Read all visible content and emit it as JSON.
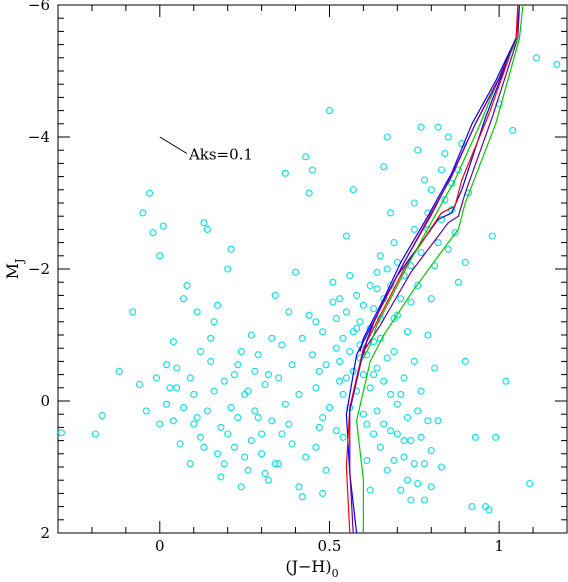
{
  "chart_data": {
    "type": "scatter",
    "xlabel_main": "(J−H)",
    "xlabel_sub": "0",
    "ylabel_main": "M",
    "ylabel_sub": "J",
    "xlim": [
      -0.3,
      1.2
    ],
    "ylim": [
      2,
      -6
    ],
    "y_axis_inverted": true,
    "x_ticks": [
      0,
      0.5,
      1
    ],
    "x_tick_labels": [
      "0",
      "0.5",
      "1"
    ],
    "y_ticks": [
      -6,
      -4,
      -2,
      0,
      2
    ],
    "y_tick_labels": [
      "−6",
      "−4",
      "−2",
      "0",
      "2"
    ],
    "grid": false,
    "annotation": {
      "text": "Aks=0.1",
      "arrow_from": [
        0.0,
        -4.0
      ],
      "arrow_to": [
        0.08,
        -3.75
      ]
    },
    "points_color": "#00e5e5",
    "points": [
      [
        -0.29,
        0.48
      ],
      [
        -0.19,
        0.5
      ],
      [
        -0.17,
        0.22
      ],
      [
        -0.12,
        -0.45
      ],
      [
        -0.08,
        -1.35
      ],
      [
        -0.06,
        -0.25
      ],
      [
        -0.04,
        0.15
      ],
      [
        -0.03,
        -3.15
      ],
      [
        -0.02,
        -2.55
      ],
      [
        -0.05,
        -2.85
      ],
      [
        0.0,
        -2.2
      ],
      [
        0.01,
        -2.65
      ],
      [
        0.02,
        0.05
      ],
      [
        0.03,
        -0.2
      ],
      [
        0.04,
        0.3
      ],
      [
        0.05,
        -0.5
      ],
      [
        -0.01,
        -0.35
      ],
      [
        0.06,
        0.65
      ],
      [
        0.07,
        -1.55
      ],
      [
        0.08,
        -1.75
      ],
      [
        0.09,
        0.95
      ],
      [
        0.1,
        -0.1
      ],
      [
        0.11,
        0.25
      ],
      [
        0.12,
        -0.75
      ],
      [
        0.13,
        -2.7
      ],
      [
        0.14,
        -2.6
      ],
      [
        0.15,
        -0.95
      ],
      [
        0.16,
        -1.2
      ],
      [
        0.17,
        -1.45
      ],
      [
        0.18,
        0.4
      ],
      [
        0.19,
        -0.3
      ],
      [
        0.2,
        -2.0
      ],
      [
        0.21,
        -2.3
      ],
      [
        0.22,
        0.7
      ],
      [
        0.23,
        -0.55
      ],
      [
        0.24,
        1.3
      ],
      [
        0.25,
        0.85
      ],
      [
        0.26,
        -0.15
      ],
      [
        0.27,
        -1.0
      ],
      [
        0.28,
        0.15
      ],
      [
        0.29,
        -0.7
      ],
      [
        0.3,
        0.5
      ],
      [
        0.31,
        1.1
      ],
      [
        0.32,
        -0.4
      ],
      [
        0.33,
        0.3
      ],
      [
        0.34,
        -1.6
      ],
      [
        0.35,
        0.95
      ],
      [
        0.36,
        -0.85
      ],
      [
        0.37,
        -3.45
      ],
      [
        0.38,
        -1.35
      ],
      [
        0.39,
        0.65
      ],
      [
        0.4,
        -1.95
      ],
      [
        0.41,
        -0.1
      ],
      [
        0.42,
        1.45
      ],
      [
        0.43,
        -3.7
      ],
      [
        0.44,
        -3.15
      ],
      [
        0.45,
        -3.5
      ],
      [
        0.46,
        -1.2
      ],
      [
        0.47,
        -0.45
      ],
      [
        0.48,
        0.25
      ],
      [
        0.49,
        1.05
      ],
      [
        0.5,
        -4.4
      ],
      [
        0.51,
        -1.5
      ],
      [
        0.52,
        -0.8
      ],
      [
        0.53,
        -0.3
      ],
      [
        0.54,
        0.55
      ],
      [
        0.55,
        -2.5
      ],
      [
        0.56,
        -1.9
      ],
      [
        0.57,
        -3.2
      ],
      [
        0.58,
        -1.1
      ],
      [
        0.59,
        -0.65
      ],
      [
        0.6,
        0.2
      ],
      [
        0.61,
        0.9
      ],
      [
        0.62,
        1.35
      ],
      [
        0.63,
        -0.4
      ],
      [
        0.64,
        -1.7
      ],
      [
        0.65,
        -2.2
      ],
      [
        0.66,
        -3.55
      ],
      [
        0.67,
        -4.0
      ],
      [
        0.68,
        -2.85
      ],
      [
        0.69,
        -2.4
      ],
      [
        0.7,
        -1.3
      ],
      [
        0.71,
        -0.1
      ],
      [
        0.72,
        0.6
      ],
      [
        0.73,
        1.2
      ],
      [
        0.74,
        -2.05
      ],
      [
        0.75,
        -3.0
      ],
      [
        0.76,
        -3.8
      ],
      [
        0.77,
        -4.15
      ],
      [
        0.78,
        -3.35
      ],
      [
        0.79,
        -2.6
      ],
      [
        0.8,
        -1.55
      ],
      [
        0.81,
        -0.5
      ],
      [
        0.82,
        0.3
      ],
      [
        0.83,
        1.0
      ],
      [
        0.84,
        -3.75
      ],
      [
        0.85,
        -4.0
      ],
      [
        0.86,
        -2.9
      ],
      [
        0.88,
        -1.8
      ],
      [
        0.9,
        -0.6
      ],
      [
        0.93,
        0.55
      ],
      [
        0.96,
        1.6
      ],
      [
        0.98,
        -2.5
      ],
      [
        1.0,
        -4.5
      ],
      [
        1.02,
        -0.3
      ],
      [
        1.04,
        -4.1
      ],
      [
        1.09,
        1.25
      ],
      [
        1.11,
        -5.2
      ],
      [
        1.17,
        -5.1
      ],
      [
        0.99,
        0.55
      ],
      [
        0.97,
        1.65
      ],
      [
        0.92,
        1.6
      ],
      [
        0.0,
        0.35
      ],
      [
        0.05,
        -0.2
      ],
      [
        0.1,
        0.35
      ],
      [
        0.15,
        -0.6
      ],
      [
        0.2,
        0.5
      ],
      [
        0.25,
        -0.1
      ],
      [
        0.3,
        0.8
      ],
      [
        0.35,
        -0.35
      ],
      [
        0.02,
        -0.55
      ],
      [
        0.07,
        0.1
      ],
      [
        0.12,
        0.55
      ],
      [
        0.17,
        0.8
      ],
      [
        0.22,
        -0.4
      ],
      [
        0.27,
        0.6
      ],
      [
        0.32,
        1.2
      ],
      [
        0.37,
        0.05
      ],
      [
        0.04,
        -0.9
      ],
      [
        0.09,
        -0.35
      ],
      [
        0.14,
        0.15
      ],
      [
        0.19,
        0.95
      ],
      [
        0.24,
        -0.75
      ],
      [
        0.29,
        0.25
      ],
      [
        0.34,
        0.95
      ],
      [
        0.39,
        -0.55
      ],
      [
        0.11,
        -1.35
      ],
      [
        0.16,
        -0.15
      ],
      [
        0.21,
        0.1
      ],
      [
        0.26,
        1.05
      ],
      [
        0.31,
        -0.25
      ],
      [
        0.36,
        0.5
      ],
      [
        0.41,
        1.3
      ],
      [
        0.46,
        0.7
      ],
      [
        0.13,
        0.7
      ],
      [
        0.18,
        1.15
      ],
      [
        0.23,
        0.25
      ],
      [
        0.28,
        -0.45
      ],
      [
        0.33,
        -0.95
      ],
      [
        0.38,
        0.35
      ],
      [
        0.43,
        0.85
      ],
      [
        0.48,
        1.4
      ],
      [
        0.42,
        -0.95
      ],
      [
        0.44,
        -1.3
      ],
      [
        0.45,
        -0.7
      ],
      [
        0.46,
        -0.2
      ],
      [
        0.47,
        0.4
      ],
      [
        0.48,
        -1.05
      ],
      [
        0.49,
        -0.55
      ],
      [
        0.5,
        0.1
      ],
      [
        0.51,
        -1.8
      ],
      [
        0.52,
        -1.25
      ],
      [
        0.52,
        0.45
      ],
      [
        0.53,
        -0.6
      ],
      [
        0.53,
        -1.55
      ],
      [
        0.54,
        -0.1
      ],
      [
        0.54,
        -0.95
      ],
      [
        0.55,
        -1.35
      ],
      [
        0.55,
        -0.35
      ],
      [
        0.56,
        -0.75
      ],
      [
        0.56,
        0.1
      ],
      [
        0.57,
        -1.05
      ],
      [
        0.57,
        -0.45
      ],
      [
        0.58,
        -1.6
      ],
      [
        0.58,
        -0.15
      ],
      [
        0.59,
        -1.2
      ],
      [
        0.59,
        -0.85
      ],
      [
        0.6,
        -0.4
      ],
      [
        0.6,
        -1.45
      ],
      [
        0.61,
        0.35
      ],
      [
        0.61,
        -0.7
      ],
      [
        0.62,
        -1.1
      ],
      [
        0.62,
        -0.2
      ],
      [
        0.63,
        -0.9
      ],
      [
        0.63,
        0.5
      ],
      [
        0.64,
        -0.5
      ],
      [
        0.64,
        0.15
      ],
      [
        0.65,
        -0.95
      ],
      [
        0.65,
        0.7
      ],
      [
        0.66,
        -0.3
      ],
      [
        0.66,
        0.35
      ],
      [
        0.67,
        -0.65
      ],
      [
        0.67,
        1.05
      ],
      [
        0.68,
        -0.1
      ],
      [
        0.68,
        0.45
      ],
      [
        0.69,
        -0.75
      ],
      [
        0.69,
        0.9
      ],
      [
        0.7,
        0.05
      ],
      [
        0.7,
        0.5
      ],
      [
        0.71,
        1.35
      ],
      [
        0.72,
        -0.35
      ],
      [
        0.72,
        0.85
      ],
      [
        0.73,
        0.25
      ],
      [
        0.74,
        0.6
      ],
      [
        0.74,
        1.5
      ],
      [
        0.75,
        -0.6
      ],
      [
        0.75,
        0.95
      ],
      [
        0.76,
        0.15
      ],
      [
        0.76,
        1.25
      ],
      [
        0.77,
        -0.15
      ],
      [
        0.77,
        0.55
      ],
      [
        0.78,
        0.95
      ],
      [
        0.78,
        1.5
      ],
      [
        0.79,
        0.3
      ],
      [
        0.79,
        -1.0
      ],
      [
        0.8,
        0.75
      ],
      [
        0.8,
        1.3
      ],
      [
        0.81,
        -2.05
      ],
      [
        0.82,
        -2.4
      ],
      [
        0.83,
        -2.75
      ],
      [
        0.84,
        -3.05
      ],
      [
        0.85,
        -2.3
      ],
      [
        0.86,
        -3.3
      ],
      [
        0.87,
        -2.55
      ],
      [
        0.88,
        -3.5
      ],
      [
        0.89,
        -3.9
      ],
      [
        0.9,
        -2.1
      ],
      [
        0.91,
        -3.15
      ],
      [
        0.83,
        -3.5
      ],
      [
        0.82,
        -4.15
      ],
      [
        0.8,
        -3.2
      ],
      [
        0.79,
        -2.85
      ],
      [
        0.77,
        -2.25
      ],
      [
        0.76,
        -1.75
      ],
      [
        0.75,
        -2.6
      ],
      [
        0.74,
        -1.5
      ],
      [
        0.73,
        -1.05
      ],
      [
        0.72,
        -1.9
      ],
      [
        0.71,
        -1.55
      ],
      [
        0.7,
        -2.1
      ],
      [
        0.69,
        -1.25
      ],
      [
        0.68,
        -1.75
      ],
      [
        0.67,
        -2.0
      ],
      [
        0.66,
        -1.55
      ],
      [
        0.65,
        -1.25
      ],
      [
        0.64,
        -1.95
      ],
      [
        0.63,
        -1.4
      ],
      [
        0.62,
        -1.75
      ]
    ],
    "series": [
      {
        "name": "",
        "color": "#0000ff",
        "x": [
          0.58,
          0.56,
          0.55,
          0.58,
          0.62,
          0.7,
          0.82,
          0.86,
          0.89,
          0.96,
          1.05,
          1.06
        ],
        "y": [
          2.0,
          1.1,
          0.2,
          -0.7,
          -1.1,
          -1.9,
          -2.75,
          -2.85,
          -3.2,
          -4.3,
          -5.5,
          -6.0
        ]
      },
      {
        "name": "",
        "color": "#ff0000",
        "x": [
          0.56,
          0.55,
          0.56,
          0.6,
          0.64,
          0.72,
          0.83,
          0.87,
          0.89,
          0.97,
          1.05,
          1.055
        ],
        "y": [
          2.0,
          1.0,
          0.1,
          -0.8,
          -1.2,
          -2.0,
          -2.85,
          -2.95,
          -3.35,
          -4.35,
          -5.5,
          -6.0
        ]
      },
      {
        "name": "",
        "color": "#00cc00",
        "x": [
          0.6,
          0.6,
          0.58,
          0.62,
          0.66,
          0.75,
          0.85,
          0.88,
          0.9,
          0.99,
          1.06,
          1.07
        ],
        "y": [
          2.0,
          1.2,
          0.3,
          -0.6,
          -1.0,
          -1.7,
          -2.4,
          -2.6,
          -3.0,
          -4.2,
          -5.5,
          -6.0
        ]
      },
      {
        "name": "",
        "color": "#6600aa",
        "x": [
          0.57,
          0.56,
          0.56,
          0.6,
          0.65,
          0.74,
          0.85,
          0.88,
          0.9,
          0.98,
          1.055,
          1.06
        ],
        "y": [
          2.0,
          1.05,
          0.15,
          -0.75,
          -1.15,
          -1.95,
          -2.7,
          -2.8,
          -3.15,
          -4.3,
          -5.5,
          -6.0
        ]
      },
      {
        "name": "",
        "color": "#ff0000",
        "x": [
          0.6,
          0.61,
          0.63,
          0.66,
          0.72,
          0.8,
          0.86,
          0.93,
          1.0,
          1.05
        ],
        "y": [
          -0.7,
          -0.9,
          -1.2,
          -1.5,
          -2.1,
          -2.85,
          -3.4,
          -4.2,
          -4.9,
          -5.5
        ]
      },
      {
        "name": "",
        "color": "#0000ff",
        "x": [
          0.59,
          0.6,
          0.62,
          0.66,
          0.71,
          0.79,
          0.86,
          0.92,
          0.99,
          1.05
        ],
        "y": [
          -0.75,
          -0.95,
          -1.15,
          -1.55,
          -2.1,
          -2.8,
          -3.45,
          -4.2,
          -4.85,
          -5.5
        ]
      },
      {
        "name": "",
        "color": "#00cc00",
        "x": [
          0.6,
          0.62,
          0.64,
          0.67,
          0.73,
          0.81,
          0.87,
          0.94,
          1.0,
          1.055
        ],
        "y": [
          -0.65,
          -0.85,
          -1.15,
          -1.45,
          -2.05,
          -2.8,
          -3.35,
          -4.15,
          -4.9,
          -5.5
        ]
      },
      {
        "name": "",
        "color": "#6600aa",
        "x": [
          0.6,
          0.61,
          0.63,
          0.66,
          0.72,
          0.8,
          0.86,
          0.93,
          1.0,
          1.05
        ],
        "y": [
          -0.7,
          -0.92,
          -1.18,
          -1.52,
          -2.1,
          -2.82,
          -3.42,
          -4.2,
          -4.88,
          -5.5
        ]
      }
    ]
  }
}
